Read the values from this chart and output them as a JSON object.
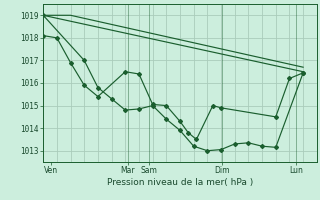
{
  "background_color": "#cceedd",
  "grid_color": "#aaccbb",
  "line_color": "#1a5e2e",
  "title": "Pression niveau de la mer( hPa )",
  "ylabel_values": [
    1013,
    1014,
    1015,
    1016,
    1017,
    1018,
    1019
  ],
  "xtick_labels": [
    "Ven",
    "Mar",
    "Sam",
    "Dim",
    "Lun"
  ],
  "xlim": [
    0,
    10.0
  ],
  "ylim": [
    1012.5,
    1019.5
  ],
  "series1_x": [
    0.0,
    1.5,
    2.0,
    2.5,
    3.0,
    3.5,
    4.0,
    4.5,
    5.0,
    5.5,
    6.0,
    6.5,
    7.0,
    7.5,
    8.0,
    8.5,
    9.5
  ],
  "series1_y": [
    1019.0,
    1017.0,
    1015.8,
    1015.3,
    1014.8,
    1014.85,
    1015.0,
    1014.4,
    1013.9,
    1013.2,
    1013.0,
    1013.05,
    1013.3,
    1013.35,
    1013.2,
    1013.15,
    1016.45
  ],
  "series2_x": [
    0.0,
    0.5,
    1.0,
    1.5,
    2.0,
    3.0,
    3.5,
    4.0,
    4.5,
    5.0,
    5.3,
    5.6,
    6.2,
    6.5,
    8.5,
    9.0,
    9.5
  ],
  "series2_y": [
    1018.1,
    1018.0,
    1016.9,
    1015.9,
    1015.4,
    1016.5,
    1016.4,
    1015.05,
    1015.0,
    1014.3,
    1013.8,
    1013.5,
    1015.0,
    1014.9,
    1014.5,
    1016.2,
    1016.45
  ],
  "series3_x": [
    0.0,
    1.0,
    9.5
  ],
  "series3_y": [
    1019.0,
    1019.0,
    1016.7
  ],
  "series4_x": [
    0.0,
    9.5
  ],
  "series4_y": [
    1019.0,
    1016.5
  ],
  "ven_x": 0.3,
  "mar_x": 3.1,
  "sam_x": 3.85,
  "dim_x": 6.55,
  "lun_x": 9.25
}
